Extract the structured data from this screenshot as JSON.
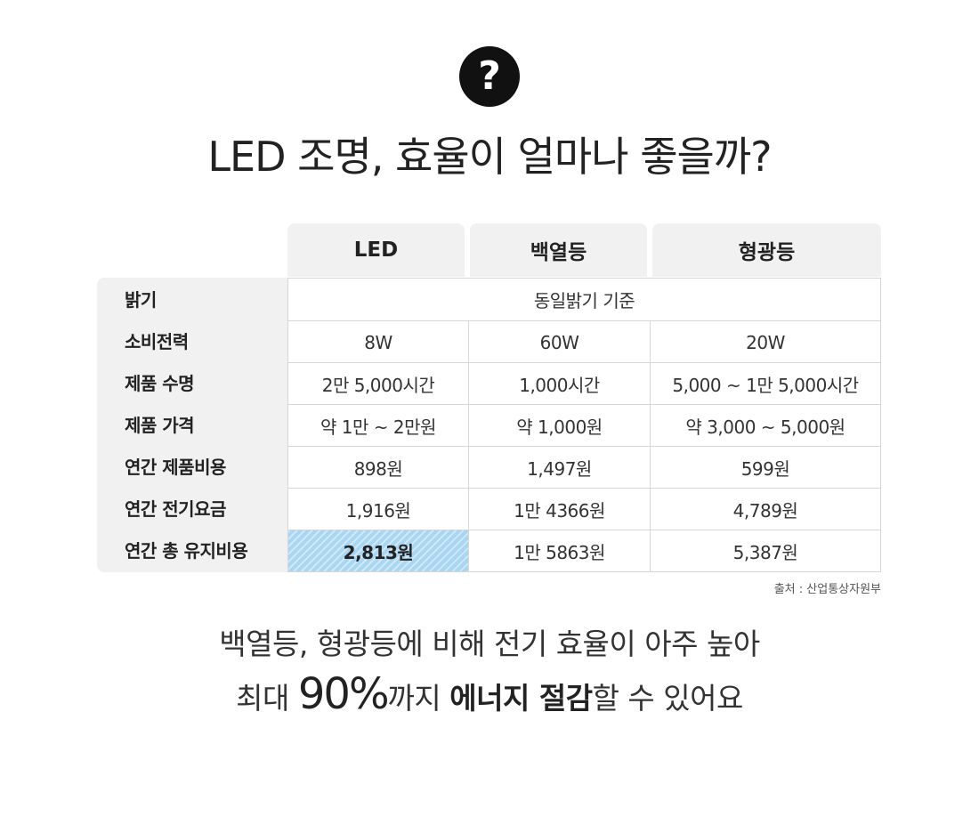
{
  "title": "LED 조명, 효율이 얼마나 좋을까?",
  "icon": "question-icon",
  "table": {
    "headers": [
      "LED",
      "백열등",
      "형광등"
    ],
    "row_labels": [
      "밝기",
      "소비전력",
      "제품 수명",
      "제품 가격",
      "연간 제품비용",
      "연간 전기요금",
      "연간 총 유지비용"
    ],
    "brightness_note": "동일밝기 기준",
    "rows": [
      [
        "8W",
        "60W",
        "20W"
      ],
      [
        "2만 5,000시간",
        "1,000시간",
        "5,000 ~ 1만 5,000시간"
      ],
      [
        "약 1만 ~ 2만원",
        "약 1,000원",
        "약 3,000 ~ 5,000원"
      ],
      [
        "898원",
        "1,497원",
        "599원"
      ],
      [
        "1,916원",
        "1만 4366원",
        "4,789원"
      ],
      [
        "2,813원",
        "1만 5863원",
        "5,387원"
      ]
    ],
    "highlight_color": "#a9d6f2"
  },
  "source": "출처 : 산업통상자원부",
  "summary": {
    "line1": "백열등, 형광등에 비해 전기 효율이 아주 높아",
    "line2_prefix": "최대 ",
    "line2_percent": "90%",
    "line2_mid": "까지 ",
    "line2_bold": "에너지 절감",
    "line2_suffix": "할 수 있어요"
  }
}
